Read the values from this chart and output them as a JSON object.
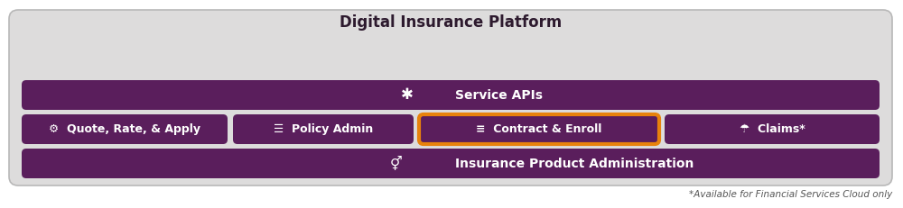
{
  "fig_width": 10.0,
  "fig_height": 2.31,
  "dpi": 100,
  "bg_color": "#ffffff",
  "outer_bg": "#dddcdc",
  "purple_dark": "#5a1e5c",
  "orange_highlight": "#e8820c",
  "text_white": "#ffffff",
  "text_dark": "#2d1a2e",
  "title": "Digital Insurance Platform",
  "service_apis_text": "Service APIs",
  "modules": [
    {
      "label": "Quote, Rate, & Apply",
      "highlighted": false,
      "icon": "⚙"
    },
    {
      "label": "Policy Admin",
      "highlighted": false,
      "icon": "☰"
    },
    {
      "label": "Contract & Enroll",
      "highlighted": true,
      "icon": "≡"
    },
    {
      "label": "Claims*",
      "highlighted": false,
      "icon": "☂"
    }
  ],
  "bottom_label": "Insurance Product Administration",
  "footnote": "*Available for Financial Services Cloud only",
  "title_fontsize": 12,
  "bar_fontsize": 10,
  "module_fontsize": 9,
  "footnote_fontsize": 7.5
}
